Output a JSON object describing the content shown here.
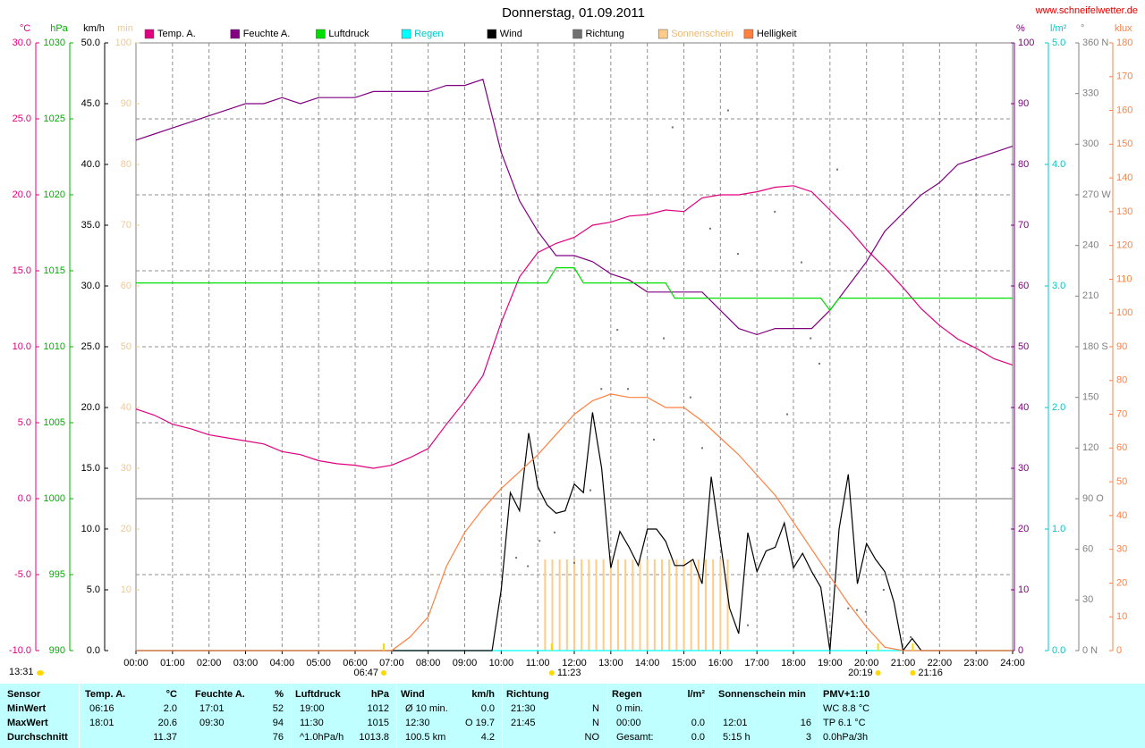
{
  "chart_data": {
    "type": "multi-axis",
    "title": "Donnerstag, 01.09.2011",
    "source": "www.schneifelwetter.de",
    "current_time": "13:31",
    "sun_events": [
      "06:47",
      "11:23",
      "20:19",
      "21:16"
    ],
    "xlim": [
      0,
      24
    ],
    "xticks": [
      {
        "value": 0,
        "label": "00:00"
      },
      {
        "value": 1,
        "label": "01:00"
      },
      {
        "value": 2,
        "label": "02:00"
      },
      {
        "value": 3,
        "label": "03:00"
      },
      {
        "value": 4,
        "label": "04:00"
      },
      {
        "value": 5,
        "label": "05:00"
      },
      {
        "value": 6,
        "label": "06:00"
      },
      {
        "value": 7,
        "label": "07:00"
      },
      {
        "value": 8,
        "label": "08:00"
      },
      {
        "value": 9,
        "label": "09:00"
      },
      {
        "value": 10,
        "label": "10:00"
      },
      {
        "value": 11,
        "label": "11:00"
      },
      {
        "value": 12,
        "label": "12:00"
      },
      {
        "value": 13,
        "label": "13:00"
      },
      {
        "value": 14,
        "label": "14:00"
      },
      {
        "value": 15,
        "label": "15:00"
      },
      {
        "value": 16,
        "label": "16:00"
      },
      {
        "value": 17,
        "label": "17:00"
      },
      {
        "value": 18,
        "label": "18:00"
      },
      {
        "value": 19,
        "label": "19:00"
      },
      {
        "value": 20,
        "label": "20:00"
      },
      {
        "value": 21,
        "label": "21:00"
      },
      {
        "value": 22,
        "label": "22:00"
      },
      {
        "value": 23,
        "label": "23:00"
      },
      {
        "value": 24,
        "label": "24:00"
      }
    ],
    "grid": true,
    "axes": [
      {
        "id": "temp",
        "side": "left",
        "label": "°C",
        "color": "#e0007f",
        "grid": true,
        "lim": [
          -10,
          30
        ],
        "ticks": [
          {
            "value": -10,
            "label": "-10.0"
          },
          {
            "value": -5,
            "label": "-5.0"
          },
          {
            "value": 0,
            "label": "0.0"
          },
          {
            "value": 5,
            "label": "5.0"
          },
          {
            "value": 10,
            "label": "10.0"
          },
          {
            "value": 15,
            "label": "15.0"
          },
          {
            "value": 20,
            "label": "20.0"
          },
          {
            "value": 25,
            "label": "25.0"
          },
          {
            "value": 30,
            "label": "30.0"
          }
        ]
      },
      {
        "id": "hpa",
        "side": "left",
        "label": "hPa",
        "color": "#00b000",
        "lim": [
          990,
          1030
        ],
        "ticks": [
          990,
          995,
          1000,
          1005,
          1010,
          1015,
          1020,
          1025,
          1030
        ]
      },
      {
        "id": "kmh",
        "side": "left",
        "label": "km/h",
        "color": "#000000",
        "lim": [
          0,
          50
        ],
        "ticks": [
          {
            "value": 0,
            "label": "0.0"
          },
          {
            "value": 5,
            "label": "5.0"
          },
          {
            "value": 10,
            "label": "10.0"
          },
          {
            "value": 15,
            "label": "15.0"
          },
          {
            "value": 20,
            "label": "20.0"
          },
          {
            "value": 25,
            "label": "25.0"
          },
          {
            "value": 30,
            "label": "30.0"
          },
          {
            "value": 35,
            "label": "35.0"
          },
          {
            "value": 40,
            "label": "40.0"
          },
          {
            "value": 45,
            "label": "45.0"
          },
          {
            "value": 50,
            "label": "50.0"
          }
        ]
      },
      {
        "id": "min",
        "side": "left",
        "label": "min",
        "color": "#f0c890",
        "lim": [
          0,
          100
        ],
        "ticks": [
          10,
          20,
          30,
          40,
          50,
          60,
          70,
          80,
          90,
          100
        ]
      },
      {
        "id": "pct",
        "side": "right",
        "label": "%",
        "color": "#800080",
        "lim": [
          0,
          100
        ],
        "ticks": [
          0,
          10,
          20,
          30,
          40,
          50,
          60,
          70,
          80,
          90,
          100
        ]
      },
      {
        "id": "rain",
        "side": "right",
        "label": "l/m²",
        "color": "#00c8c8",
        "lim": [
          0,
          5
        ],
        "ticks": [
          {
            "value": 0,
            "label": "0.0"
          },
          {
            "value": 1,
            "label": "1.0"
          },
          {
            "value": 2,
            "label": "2.0"
          },
          {
            "value": 3,
            "label": "3.0"
          },
          {
            "value": 4,
            "label": "4.0"
          },
          {
            "value": 5,
            "label": "5.0"
          }
        ]
      },
      {
        "id": "dir",
        "side": "right",
        "label": "°",
        "color": "#808080",
        "lim": [
          0,
          360
        ],
        "ticks": [
          {
            "value": 0,
            "label": "0 N"
          },
          30,
          60,
          {
            "value": 90,
            "label": "90 O"
          },
          120,
          150,
          {
            "value": 180,
            "label": "180 S"
          },
          210,
          240,
          {
            "value": 270,
            "label": "270 W"
          },
          300,
          330,
          {
            "value": 360,
            "label": "360 N"
          }
        ]
      },
      {
        "id": "klux",
        "side": "right",
        "label": "klux",
        "color": "#ff8040",
        "lim": [
          0,
          180
        ],
        "ticks": [
          0,
          10,
          20,
          30,
          40,
          50,
          60,
          70,
          80,
          90,
          100,
          110,
          120,
          130,
          140,
          150,
          160,
          170,
          180
        ]
      }
    ],
    "series": [
      {
        "name": "Temp. A.",
        "color": "#e0007f",
        "axis": "temp",
        "kind": "line",
        "x": [
          0,
          0.5,
          1,
          1.5,
          2,
          2.5,
          3,
          3.5,
          4,
          4.5,
          5,
          5.5,
          6,
          6.5,
          7,
          7.5,
          8,
          8.5,
          9,
          9.5,
          10,
          10.5,
          11,
          11.5,
          12,
          12.5,
          13,
          13.5,
          14,
          14.5,
          15,
          15.5,
          16,
          16.5,
          17,
          17.5,
          18,
          18.5,
          19,
          19.5,
          20,
          20.5,
          21,
          21.5,
          22,
          22.5,
          23,
          23.5,
          24
        ],
        "values": [
          5.9,
          5.5,
          4.9,
          4.6,
          4.2,
          4.0,
          3.8,
          3.6,
          3.1,
          2.9,
          2.5,
          2.3,
          2.2,
          2.0,
          2.2,
          2.7,
          3.3,
          4.9,
          6.4,
          8.1,
          11.6,
          14.6,
          16.2,
          16.8,
          17.2,
          18.0,
          18.2,
          18.6,
          18.7,
          19.0,
          18.9,
          19.8,
          20.0,
          20.0,
          20.2,
          20.5,
          20.6,
          20.2,
          19.0,
          17.8,
          16.4,
          15.2,
          13.9,
          12.5,
          11.4,
          10.5,
          9.9,
          9.2,
          8.8
        ]
      },
      {
        "name": "Feuchte A.",
        "color": "#800080",
        "axis": "pct",
        "kind": "line",
        "x": [
          0,
          0.5,
          1,
          1.5,
          2,
          2.5,
          3,
          3.5,
          4,
          4.5,
          5,
          5.5,
          6,
          6.5,
          7,
          7.5,
          8,
          8.5,
          9,
          9.5,
          10,
          10.5,
          11,
          11.5,
          12,
          12.5,
          13,
          13.5,
          14,
          14.5,
          15,
          15.5,
          16,
          16.5,
          17,
          17.5,
          18,
          18.5,
          19,
          19.5,
          20,
          20.5,
          21,
          21.5,
          22,
          22.5,
          23,
          23.5,
          24
        ],
        "values": [
          84,
          85,
          86,
          87,
          88,
          89,
          90,
          90,
          91,
          90,
          91,
          91,
          91,
          92,
          92,
          92,
          92,
          93,
          93,
          94,
          82,
          74,
          69,
          65,
          65,
          64,
          62,
          61,
          59,
          59,
          59,
          59,
          56,
          53,
          52,
          53,
          53,
          53,
          56,
          60,
          64,
          69,
          72,
          75,
          77,
          80,
          81,
          82,
          83
        ]
      },
      {
        "name": "Luftdruck",
        "color": "#00dd00",
        "axis": "hpa",
        "kind": "line",
        "x": [
          0,
          11.25,
          11.5,
          12,
          12.25,
          14.5,
          14.75,
          18.75,
          19,
          19.25,
          24
        ],
        "values": [
          1014.2,
          1014.2,
          1015.2,
          1015.2,
          1014.2,
          1014.2,
          1013.2,
          1013.2,
          1012.4,
          1013.2,
          1013.2
        ]
      },
      {
        "name": "Regen",
        "color": "#00ffff",
        "legend_label_color": "#00c8c8",
        "axis": "rain",
        "kind": "line",
        "x": [
          0,
          24
        ],
        "values": [
          0,
          0
        ]
      },
      {
        "name": "Wind",
        "color": "#000000",
        "axis": "kmh",
        "kind": "line",
        "x": [
          0,
          9.75,
          10,
          10.25,
          10.5,
          10.75,
          11,
          11.25,
          11.5,
          11.75,
          12,
          12.25,
          12.5,
          12.75,
          13,
          13.25,
          13.5,
          13.75,
          14,
          14.25,
          14.5,
          14.75,
          15,
          15.25,
          15.5,
          15.75,
          16,
          16.25,
          16.5,
          16.75,
          17,
          17.25,
          17.5,
          17.75,
          18,
          18.25,
          18.5,
          18.75,
          19,
          19.25,
          19.5,
          19.75,
          20,
          20.25,
          20.5,
          20.75,
          21,
          21.25,
          21.5,
          24
        ],
        "values": [
          0,
          0,
          5,
          13,
          11.5,
          17.9,
          13.5,
          12,
          11.3,
          11.5,
          13.7,
          13,
          19.6,
          15,
          6.8,
          9.8,
          8.5,
          7,
          10,
          10,
          9,
          7,
          7,
          7.5,
          5.5,
          14.3,
          9,
          3.5,
          1.4,
          9.7,
          6.5,
          8.2,
          8.5,
          10.5,
          6.8,
          8,
          6.5,
          5.2,
          0,
          10,
          14.5,
          5.5,
          8.8,
          7.5,
          6.5,
          4,
          0,
          1,
          0,
          0
        ]
      },
      {
        "name": "Richtung",
        "color": "#707070",
        "axis": "dir",
        "kind": "dots",
        "x": [
          10.41,
          10.73,
          11.05,
          11.46,
          12.0,
          12.44,
          12.74,
          13.18,
          13.47,
          14.18,
          14.45,
          14.69,
          15.18,
          15.5,
          15.72,
          16.21,
          16.48,
          16.75,
          17.49,
          17.83,
          18.22,
          18.47,
          18.71,
          19.2,
          19.5,
          19.74,
          19.98,
          20.47,
          21.21
        ],
        "values": [
          55,
          50,
          65,
          70,
          52,
          95,
          155,
          190,
          155,
          125,
          185,
          310,
          150,
          120,
          250,
          320,
          235,
          15,
          260,
          140,
          230,
          185,
          170,
          285,
          25,
          24,
          23,
          36,
          8
        ]
      },
      {
        "name": "Sonnenschein",
        "color": "#ffcc88",
        "legend_label_color": "#e8b878",
        "axis": "min",
        "kind": "bars",
        "x": [
          11.2,
          11.4,
          11.6,
          11.8,
          12,
          12.2,
          12.4,
          12.6,
          12.8,
          13,
          13.2,
          13.4,
          13.6,
          13.8,
          14,
          14.2,
          14.4,
          14.6,
          14.8,
          15,
          15.2,
          15.4,
          15.6,
          15.8,
          16,
          16.2
        ],
        "values": [
          15,
          15,
          15,
          15,
          15,
          15,
          15,
          15,
          15,
          15,
          15,
          15,
          15,
          15,
          15,
          15,
          15,
          15,
          15,
          15,
          15,
          15,
          15,
          15,
          15,
          15
        ]
      },
      {
        "name": "Helligkeit",
        "color": "#ff8040",
        "axis": "klux",
        "kind": "line",
        "x": [
          0,
          7,
          7.5,
          8,
          8.5,
          9,
          9.5,
          10,
          10.5,
          11,
          11.5,
          12,
          12.5,
          13,
          13.5,
          14,
          14.5,
          15,
          15.5,
          16,
          16.5,
          17,
          17.5,
          18,
          18.5,
          19,
          19.5,
          20,
          20.5,
          21,
          24
        ],
        "values": [
          0,
          0,
          4,
          10,
          25,
          35,
          42,
          48,
          53,
          58,
          64,
          70,
          74,
          76,
          75,
          75,
          72,
          72,
          68,
          63,
          58,
          52,
          46,
          38,
          30,
          22,
          14,
          7,
          1,
          0,
          0
        ]
      }
    ]
  },
  "table": {
    "groups": [
      {
        "head": {
          "left": "Sensor"
        },
        "rows": [
          {
            "left": "MinWert"
          },
          {
            "left": "MaxWert"
          },
          {
            "left": "Durchschnitt"
          }
        ]
      },
      {
        "head": {
          "left": "Temp. A.",
          "right": "°C"
        },
        "rows": [
          {
            "left": "06:16",
            "right": "2.0"
          },
          {
            "left": "18:01",
            "right": "20.6"
          },
          {
            "right": "11.37"
          }
        ]
      },
      {
        "head": {
          "left": "Feuchte A.",
          "right": "%"
        },
        "rows": [
          {
            "left": "17:01",
            "right": "52"
          },
          {
            "left": "09:30",
            "right": "94"
          },
          {
            "right": "76"
          }
        ]
      },
      {
        "head": {
          "left": "Luftdruck",
          "right": "hPa"
        },
        "rows": [
          {
            "left": "19:00",
            "right": "1012"
          },
          {
            "left": "11:30",
            "right": "1015"
          },
          {
            "left": "^1.0hPa/h",
            "right": "1013.8"
          }
        ]
      },
      {
        "head": {
          "left": "Wind",
          "right": "km/h"
        },
        "rows": [
          {
            "left": "Ø 10 min.",
            "right": "0.0"
          },
          {
            "left": "12:30",
            "right": "O 19.7"
          },
          {
            "left": "100.5 km",
            "right": "4.2"
          }
        ]
      },
      {
        "head": {
          "left": "Richtung"
        },
        "rows": [
          {
            "left": "21:30",
            "right": "N"
          },
          {
            "left": "21:45",
            "right": "N"
          },
          {
            "right": "NO"
          }
        ]
      },
      {
        "head": {
          "left": "Regen",
          "right": "l/m²"
        },
        "rows": [
          {
            "left": "0 min."
          },
          {
            "left": "00:00",
            "right": "0.0"
          },
          {
            "left": "Gesamt:",
            "right": "0.0"
          }
        ]
      },
      {
        "head": {
          "left": "Sonnenschein min"
        },
        "rows": [
          {},
          {
            "left": "12:01",
            "right": "16"
          },
          {
            "left": "5:15 h",
            "right": "3"
          }
        ]
      },
      {
        "head": {
          "left": "PMV+1:10"
        },
        "rows": [
          {
            "left": "WC 8.8 °C"
          },
          {
            "left": "TP 6.1 °C"
          },
          {
            "left": "0.0hPa/3h"
          }
        ]
      }
    ]
  }
}
